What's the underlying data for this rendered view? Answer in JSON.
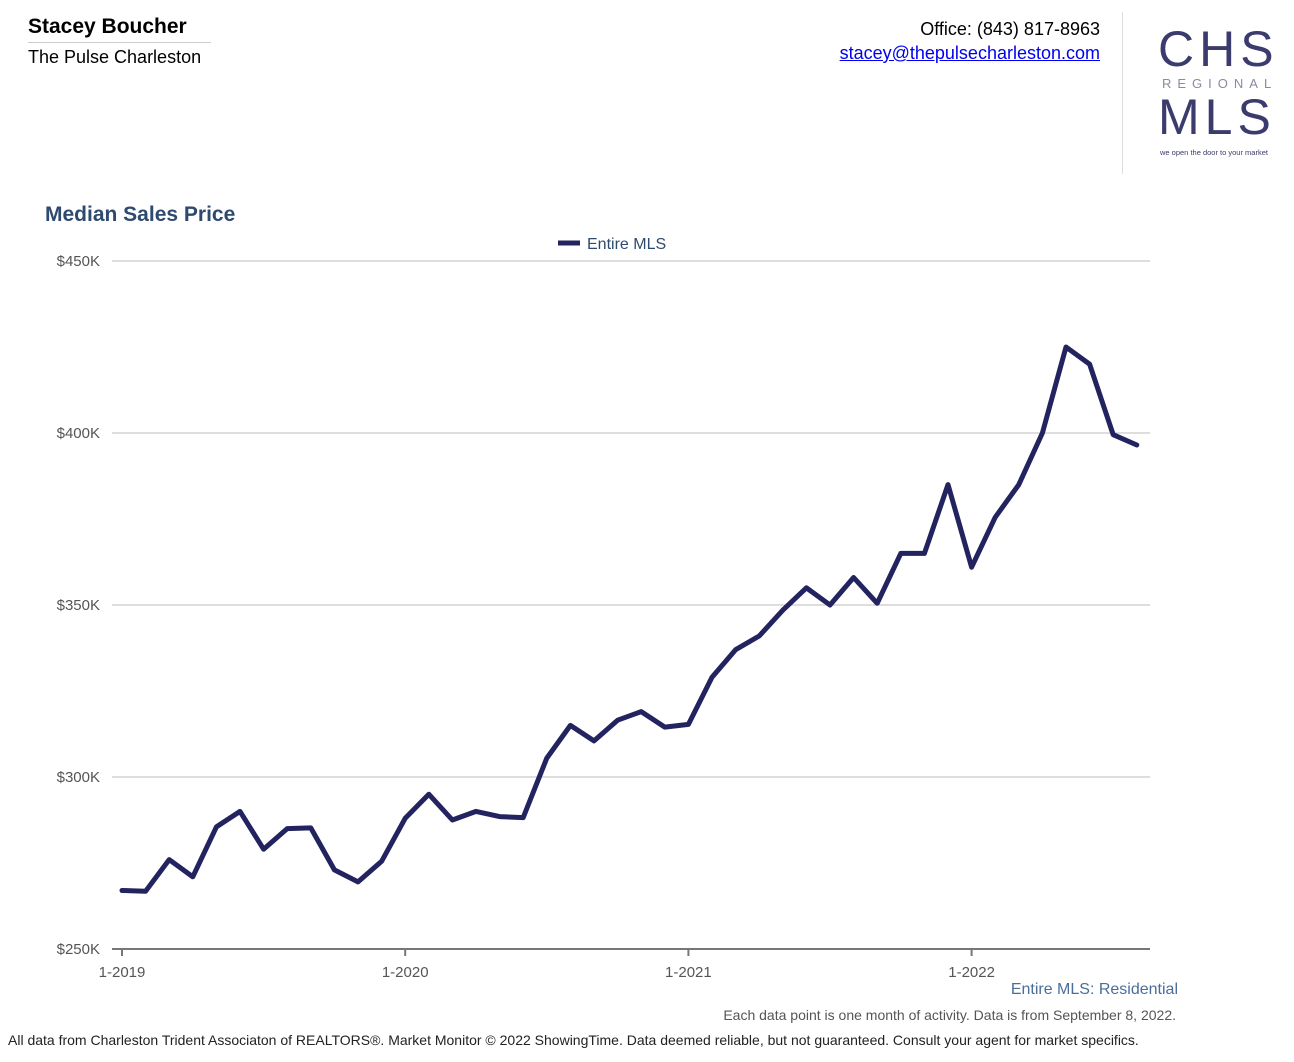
{
  "header": {
    "agent_name": "Stacey Boucher",
    "company": "The Pulse Charleston",
    "office": "Office: (843) 817-8963",
    "email": "stacey@thepulsecharleston.com"
  },
  "logo": {
    "line1": "CHS",
    "line2": "REGIONAL",
    "line3": "MLS",
    "tagline": "we open the door to your market"
  },
  "chart_data": {
    "type": "line",
    "title": "Median Sales Price",
    "xlabel": "",
    "ylabel": "",
    "x_ticks": [
      "1-2019",
      "1-2020",
      "1-2021",
      "1-2022"
    ],
    "y_ticks": [
      "$250K",
      "$300K",
      "$350K",
      "$400K",
      "$450K"
    ],
    "ylim": [
      250000,
      450000
    ],
    "grid": true,
    "legend_position": "top-center",
    "x": [
      "2019-01",
      "2019-02",
      "2019-03",
      "2019-04",
      "2019-05",
      "2019-06",
      "2019-07",
      "2019-08",
      "2019-09",
      "2019-10",
      "2019-11",
      "2019-12",
      "2020-01",
      "2020-02",
      "2020-03",
      "2020-04",
      "2020-05",
      "2020-06",
      "2020-07",
      "2020-08",
      "2020-09",
      "2020-10",
      "2020-11",
      "2020-12",
      "2021-01",
      "2021-02",
      "2021-03",
      "2021-04",
      "2021-05",
      "2021-06",
      "2021-07",
      "2021-08",
      "2021-09",
      "2021-10",
      "2021-11",
      "2021-12",
      "2022-01",
      "2022-02",
      "2022-03",
      "2022-04",
      "2022-05",
      "2022-06",
      "2022-07",
      "2022-08"
    ],
    "series": [
      {
        "name": "Entire MLS",
        "color": "#23235f",
        "values": [
          267000,
          266800,
          276000,
          271000,
          285500,
          290000,
          279000,
          285000,
          285200,
          273000,
          269500,
          275500,
          288000,
          295000,
          287500,
          290000,
          288500,
          288200,
          305500,
          315000,
          310500,
          316500,
          319000,
          314500,
          315300,
          329000,
          337000,
          341000,
          348500,
          355000,
          350000,
          358000,
          350500,
          365000,
          365000,
          385000,
          361000,
          375500,
          385000,
          400000,
          425000,
          420000,
          399500,
          396500
        ]
      }
    ]
  },
  "bottom_label": "Entire MLS: Residential",
  "note": "Each data point is one month of activity. Data is from September 8, 2022.",
  "footer": "All data from Charleston Trident Associaton of REALTORS®. Market Monitor © 2022 ShowingTime. Data deemed reliable, but not guaranteed. Consult your agent for market specifics."
}
